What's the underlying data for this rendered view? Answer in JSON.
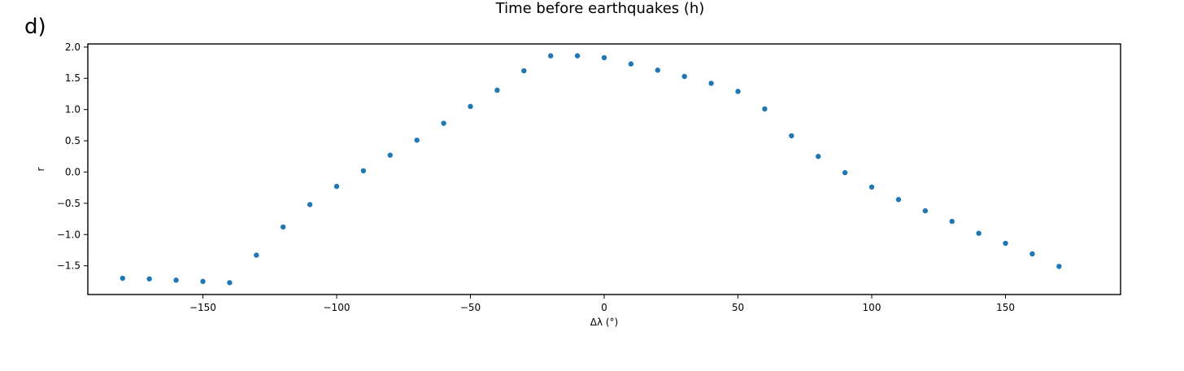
{
  "panel_label": "d)",
  "chart_data": {
    "type": "scatter",
    "title": "Time before earthquakes (h)",
    "xlabel": "Δλ (°)",
    "ylabel": "r",
    "xlim": [
      -193,
      193
    ],
    "ylim": [
      -1.96,
      2.05
    ],
    "xticks": [
      -150,
      -100,
      -50,
      0,
      50,
      100,
      150
    ],
    "xtick_labels": [
      "−150",
      "−100",
      "−50",
      "0",
      "50",
      "100",
      "150"
    ],
    "yticks": [
      -1.5,
      -1.0,
      -0.5,
      0.0,
      0.5,
      1.0,
      1.5,
      2.0
    ],
    "ytick_labels": [
      "−1.5",
      "−1.0",
      "−0.5",
      "0.0",
      "0.5",
      "1.0",
      "1.5",
      "2.0"
    ],
    "grid": false,
    "marker_color": "#1f77b4",
    "points": [
      {
        "x": -180,
        "y": -1.7
      },
      {
        "x": -170,
        "y": -1.71
      },
      {
        "x": -160,
        "y": -1.73
      },
      {
        "x": -150,
        "y": -1.75
      },
      {
        "x": -140,
        "y": -1.77
      },
      {
        "x": -130,
        "y": -1.33
      },
      {
        "x": -120,
        "y": -0.88
      },
      {
        "x": -110,
        "y": -0.52
      },
      {
        "x": -100,
        "y": -0.23
      },
      {
        "x": -90,
        "y": 0.02
      },
      {
        "x": -80,
        "y": 0.27
      },
      {
        "x": -70,
        "y": 0.51
      },
      {
        "x": -60,
        "y": 0.78
      },
      {
        "x": -50,
        "y": 1.05
      },
      {
        "x": -40,
        "y": 1.31
      },
      {
        "x": -30,
        "y": 1.62
      },
      {
        "x": -20,
        "y": 1.86
      },
      {
        "x": -10,
        "y": 1.86
      },
      {
        "x": 0,
        "y": 1.83
      },
      {
        "x": 10,
        "y": 1.73
      },
      {
        "x": 20,
        "y": 1.63
      },
      {
        "x": 30,
        "y": 1.53
      },
      {
        "x": 40,
        "y": 1.42
      },
      {
        "x": 50,
        "y": 1.29
      },
      {
        "x": 60,
        "y": 1.01
      },
      {
        "x": 70,
        "y": 0.58
      },
      {
        "x": 80,
        "y": 0.25
      },
      {
        "x": 90,
        "y": -0.01
      },
      {
        "x": 100,
        "y": -0.24
      },
      {
        "x": 110,
        "y": -0.44
      },
      {
        "x": 120,
        "y": -0.62
      },
      {
        "x": 130,
        "y": -0.79
      },
      {
        "x": 140,
        "y": -0.98
      },
      {
        "x": 150,
        "y": -1.14
      },
      {
        "x": 160,
        "y": -1.31
      },
      {
        "x": 170,
        "y": -1.51
      }
    ]
  }
}
